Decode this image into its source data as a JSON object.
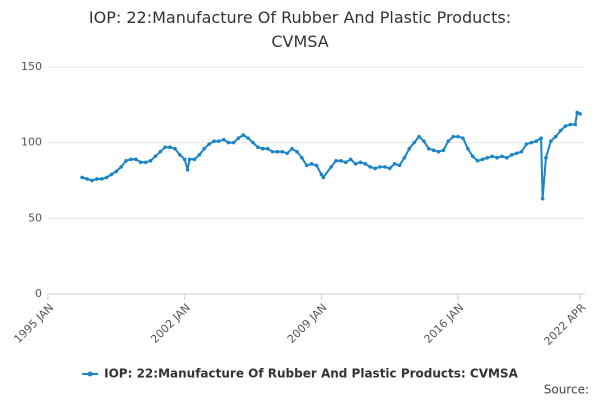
{
  "chart_data": {
    "type": "line",
    "title": "IOP: 22:Manufacture Of Rubber And Plastic Products: CVMSA",
    "source": "Source:",
    "x": [
      1996.75,
      1997.0,
      1997.25,
      1997.5,
      1997.75,
      1998.0,
      1998.25,
      1998.5,
      1998.75,
      1999.0,
      1999.25,
      1999.5,
      1999.75,
      2000.0,
      2000.25,
      2000.5,
      2000.75,
      2001.0,
      2001.25,
      2001.5,
      2001.75,
      2002.0,
      2002.15,
      2002.25,
      2002.5,
      2002.75,
      2003.0,
      2003.25,
      2003.5,
      2003.75,
      2004.0,
      2004.25,
      2004.5,
      2004.75,
      2005.0,
      2005.25,
      2005.5,
      2005.75,
      2006.0,
      2006.25,
      2006.5,
      2006.75,
      2007.0,
      2007.25,
      2007.5,
      2007.75,
      2008.0,
      2008.25,
      2008.5,
      2008.75,
      2009.0,
      2009.1,
      2009.5,
      2009.75,
      2010.0,
      2010.25,
      2010.5,
      2010.75,
      2011.0,
      2011.25,
      2011.5,
      2011.75,
      2012.0,
      2012.25,
      2012.5,
      2012.75,
      2013.0,
      2013.25,
      2013.5,
      2013.75,
      2014.0,
      2014.25,
      2014.5,
      2014.75,
      2015.0,
      2015.25,
      2015.5,
      2015.75,
      2016.0,
      2016.25,
      2016.5,
      2016.75,
      2017.0,
      2017.25,
      2017.5,
      2017.75,
      2018.0,
      2018.25,
      2018.5,
      2018.75,
      2019.0,
      2019.25,
      2019.5,
      2019.75,
      2020.0,
      2020.25,
      2020.33,
      2020.5,
      2020.75,
      2021.0,
      2021.25,
      2021.5,
      2021.75,
      2022.0,
      2022.1,
      2022.25
    ],
    "series": [
      {
        "name": "IOP: 22:Manufacture Of Rubber And Plastic Products: CVMSA",
        "color": "#1a85c6",
        "values": [
          77,
          76,
          75,
          76,
          76,
          77,
          79,
          81,
          84,
          88,
          89,
          89,
          87,
          87,
          88,
          91,
          94,
          97,
          97,
          96,
          92,
          89,
          82,
          89,
          89,
          92,
          96,
          99,
          101,
          101,
          102,
          100,
          100,
          103,
          105,
          103,
          100,
          97,
          96,
          96,
          94,
          94,
          94,
          93,
          96,
          94,
          90,
          85,
          86,
          85,
          79,
          77,
          84,
          88,
          88,
          87,
          89,
          86,
          87,
          86,
          84,
          83,
          84,
          84,
          83,
          86,
          85,
          90,
          96,
          100,
          104,
          101,
          96,
          95,
          94,
          95,
          101,
          104,
          104,
          103,
          96,
          91,
          88,
          89,
          90,
          91,
          90,
          91,
          90,
          92,
          93,
          94,
          99,
          100,
          101,
          103,
          63,
          90,
          101,
          104,
          108,
          111,
          112,
          112,
          120,
          119
        ]
      }
    ],
    "xlim": [
      1995,
      2022.5
    ],
    "xticks": [
      {
        "value": 1995,
        "label": "1995 JAN"
      },
      {
        "value": 2002,
        "label": "2002 JAN"
      },
      {
        "value": 2009,
        "label": "2009 JAN"
      },
      {
        "value": 2016,
        "label": "2016 JAN"
      },
      {
        "value": 2022.25,
        "label": "2022 APR"
      }
    ],
    "ylim": [
      0,
      150
    ],
    "yticks": [
      0,
      50,
      100,
      150
    ],
    "grid": true,
    "legend": "bottom"
  }
}
